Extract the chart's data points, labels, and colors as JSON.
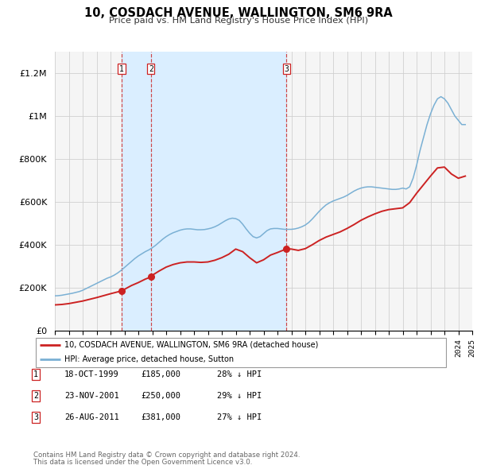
{
  "title": "10, COSDACH AVENUE, WALLINGTON, SM6 9RA",
  "subtitle": "Price paid vs. HM Land Registry's House Price Index (HPI)",
  "ylim": [
    0,
    1300000
  ],
  "yticks": [
    0,
    200000,
    400000,
    600000,
    800000,
    1000000,
    1200000
  ],
  "ytick_labels": [
    "£0",
    "£200K",
    "£400K",
    "£600K",
    "£800K",
    "£1M",
    "£1.2M"
  ],
  "x_start_year": 1995,
  "x_end_year": 2025,
  "hpi_color": "#7ab0d4",
  "price_color": "#cc2222",
  "marker_color": "#cc2222",
  "shade_color": "#daeeff",
  "grid_color": "#d0d0d0",
  "bg_color": "#f5f5f5",
  "sale_dates": [
    1999.79,
    2001.9,
    2011.65
  ],
  "sale_prices": [
    185000,
    250000,
    381000
  ],
  "sale_labels": [
    "1",
    "2",
    "3"
  ],
  "legend_label_price": "10, COSDACH AVENUE, WALLINGTON, SM6 9RA (detached house)",
  "legend_label_hpi": "HPI: Average price, detached house, Sutton",
  "table_rows": [
    {
      "num": "1",
      "date": "18-OCT-1999",
      "price": "£185,000",
      "pct": "28% ↓ HPI"
    },
    {
      "num": "2",
      "date": "23-NOV-2001",
      "price": "£250,000",
      "pct": "29% ↓ HPI"
    },
    {
      "num": "3",
      "date": "26-AUG-2011",
      "price": "£381,000",
      "pct": "27% ↓ HPI"
    }
  ],
  "footnote1": "Contains HM Land Registry data © Crown copyright and database right 2024.",
  "footnote2": "This data is licensed under the Open Government Licence v3.0.",
  "hpi_data_x": [
    1995.0,
    1995.25,
    1995.5,
    1995.75,
    1996.0,
    1996.25,
    1996.5,
    1996.75,
    1997.0,
    1997.25,
    1997.5,
    1997.75,
    1998.0,
    1998.25,
    1998.5,
    1998.75,
    1999.0,
    1999.25,
    1999.5,
    1999.75,
    2000.0,
    2000.25,
    2000.5,
    2000.75,
    2001.0,
    2001.25,
    2001.5,
    2001.75,
    2002.0,
    2002.25,
    2002.5,
    2002.75,
    2003.0,
    2003.25,
    2003.5,
    2003.75,
    2004.0,
    2004.25,
    2004.5,
    2004.75,
    2005.0,
    2005.25,
    2005.5,
    2005.75,
    2006.0,
    2006.25,
    2006.5,
    2006.75,
    2007.0,
    2007.25,
    2007.5,
    2007.75,
    2008.0,
    2008.25,
    2008.5,
    2008.75,
    2009.0,
    2009.25,
    2009.5,
    2009.75,
    2010.0,
    2010.25,
    2010.5,
    2010.75,
    2011.0,
    2011.25,
    2011.5,
    2011.75,
    2012.0,
    2012.25,
    2012.5,
    2012.75,
    2013.0,
    2013.25,
    2013.5,
    2013.75,
    2014.0,
    2014.25,
    2014.5,
    2014.75,
    2015.0,
    2015.25,
    2015.5,
    2015.75,
    2016.0,
    2016.25,
    2016.5,
    2016.75,
    2017.0,
    2017.25,
    2017.5,
    2017.75,
    2018.0,
    2018.25,
    2018.5,
    2018.75,
    2019.0,
    2019.25,
    2019.5,
    2019.75,
    2020.0,
    2020.25,
    2020.5,
    2020.75,
    2021.0,
    2021.25,
    2021.5,
    2021.75,
    2022.0,
    2022.25,
    2022.5,
    2022.75,
    2023.0,
    2023.25,
    2023.5,
    2023.75,
    2024.0,
    2024.25,
    2024.5
  ],
  "hpi_data_y": [
    162000,
    163000,
    165000,
    168000,
    171000,
    174000,
    178000,
    182000,
    188000,
    196000,
    204000,
    212000,
    220000,
    228000,
    236000,
    244000,
    250000,
    258000,
    268000,
    280000,
    294000,
    308000,
    322000,
    336000,
    348000,
    358000,
    368000,
    376000,
    386000,
    398000,
    412000,
    426000,
    438000,
    448000,
    456000,
    462000,
    468000,
    472000,
    474000,
    474000,
    472000,
    470000,
    470000,
    471000,
    474000,
    478000,
    484000,
    492000,
    502000,
    512000,
    520000,
    524000,
    522000,
    514000,
    496000,
    474000,
    454000,
    438000,
    432000,
    438000,
    452000,
    466000,
    474000,
    476000,
    476000,
    474000,
    472000,
    472000,
    472000,
    474000,
    478000,
    484000,
    492000,
    504000,
    520000,
    538000,
    556000,
    572000,
    586000,
    596000,
    604000,
    610000,
    616000,
    622000,
    630000,
    640000,
    650000,
    658000,
    664000,
    668000,
    670000,
    670000,
    668000,
    666000,
    664000,
    662000,
    660000,
    658000,
    658000,
    660000,
    664000,
    660000,
    670000,
    710000,
    770000,
    840000,
    900000,
    960000,
    1010000,
    1050000,
    1080000,
    1090000,
    1080000,
    1060000,
    1030000,
    1000000,
    980000,
    960000,
    960000
  ],
  "price_data_x": [
    1995.0,
    1995.5,
    1996.0,
    1996.5,
    1997.0,
    1997.5,
    1998.0,
    1998.5,
    1999.0,
    1999.79,
    2000.5,
    2001.0,
    2001.5,
    2001.9,
    2002.0,
    2002.5,
    2003.0,
    2003.5,
    2004.0,
    2004.5,
    2005.0,
    2005.5,
    2006.0,
    2006.5,
    2007.0,
    2007.5,
    2008.0,
    2008.5,
    2009.0,
    2009.5,
    2010.0,
    2010.5,
    2011.0,
    2011.65,
    2012.0,
    2012.5,
    2013.0,
    2013.5,
    2014.0,
    2014.5,
    2015.0,
    2015.5,
    2016.0,
    2016.5,
    2017.0,
    2017.5,
    2018.0,
    2018.5,
    2019.0,
    2019.5,
    2020.0,
    2020.5,
    2021.0,
    2021.5,
    2022.0,
    2022.5,
    2023.0,
    2023.5,
    2024.0,
    2024.5
  ],
  "price_data_y": [
    120000,
    122000,
    126000,
    132000,
    138000,
    146000,
    154000,
    163000,
    172000,
    185000,
    210000,
    224000,
    240000,
    250000,
    258000,
    278000,
    296000,
    308000,
    316000,
    320000,
    320000,
    318000,
    320000,
    328000,
    340000,
    356000,
    380000,
    368000,
    340000,
    316000,
    330000,
    352000,
    364000,
    381000,
    380000,
    374000,
    382000,
    400000,
    420000,
    436000,
    448000,
    460000,
    476000,
    494000,
    514000,
    530000,
    544000,
    556000,
    564000,
    568000,
    572000,
    596000,
    640000,
    680000,
    720000,
    758000,
    762000,
    730000,
    710000,
    720000
  ]
}
